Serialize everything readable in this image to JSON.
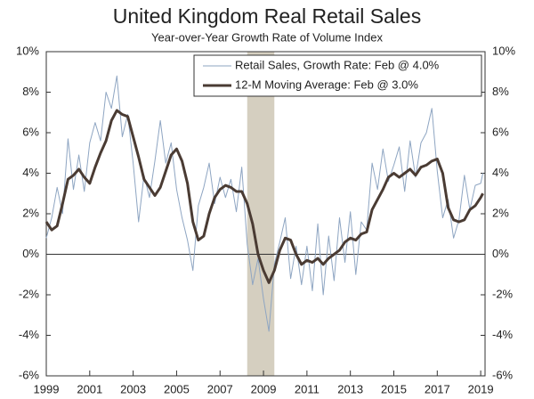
{
  "chart_data": {
    "type": "line",
    "title": "United Kingdom Real Retail Sales",
    "subtitle": "Year-over-Year Growth Rate of Volume Index",
    "x": [
      1999,
      1999.25,
      1999.5,
      1999.75,
      2000,
      2000.25,
      2000.5,
      2000.75,
      2001,
      2001.25,
      2001.5,
      2001.75,
      2002,
      2002.25,
      2002.5,
      2002.75,
      2003,
      2003.25,
      2003.5,
      2003.75,
      2004,
      2004.25,
      2004.5,
      2004.75,
      2005,
      2005.25,
      2005.5,
      2005.75,
      2006,
      2006.25,
      2006.5,
      2006.75,
      2007,
      2007.25,
      2007.5,
      2007.75,
      2008,
      2008.25,
      2008.5,
      2008.75,
      2009,
      2009.25,
      2009.5,
      2009.75,
      2010,
      2010.25,
      2010.5,
      2010.75,
      2011,
      2011.25,
      2011.5,
      2011.75,
      2012,
      2012.25,
      2012.5,
      2012.75,
      2013,
      2013.25,
      2013.5,
      2013.75,
      2014,
      2014.25,
      2014.5,
      2014.75,
      2015,
      2015.25,
      2015.5,
      2015.75,
      2016,
      2016.25,
      2016.5,
      2016.75,
      2017,
      2017.25,
      2017.5,
      2017.75,
      2018,
      2018.25,
      2018.5,
      2018.75,
      2019,
      2019.1
    ],
    "series": [
      {
        "name": "Retail Sales, Growth Rate: Feb @ 4.0%",
        "color": "#8ea5c2",
        "width": 1,
        "values": [
          0.8,
          1.8,
          3.3,
          2.0,
          5.7,
          3.2,
          4.9,
          3.1,
          5.5,
          6.5,
          5.6,
          8.0,
          7.2,
          8.8,
          5.8,
          6.9,
          4.5,
          1.6,
          3.9,
          2.8,
          4.6,
          6.6,
          4.5,
          5.5,
          3.2,
          1.8,
          0.7,
          -0.8,
          2.4,
          3.3,
          4.5,
          2.5,
          3.8,
          2.8,
          3.7,
          2.1,
          4.3,
          0.5,
          -1.5,
          -0.2,
          -2.2,
          -3.8,
          -0.5,
          0.6,
          1.8,
          -1.2,
          0.4,
          -1.5,
          0.4,
          -1.8,
          1.5,
          -2.0,
          0.9,
          -1.3,
          1.8,
          -0.4,
          2.1,
          -1.0,
          1.6,
          1.2,
          4.5,
          3.2,
          5.2,
          3.6,
          4.4,
          5.3,
          3.1,
          5.6,
          3.8,
          5.5,
          6.0,
          7.2,
          4.1,
          1.8,
          2.7,
          0.8,
          1.7,
          3.9,
          2.2,
          3.4,
          3.5,
          4.0
        ]
      },
      {
        "name": "12-M Moving Average: Feb @ 3.0%",
        "color": "#4a3b33",
        "width": 3,
        "values": [
          1.6,
          1.2,
          1.4,
          2.5,
          3.7,
          3.9,
          4.2,
          3.8,
          3.5,
          4.3,
          5.0,
          5.6,
          6.6,
          7.1,
          6.9,
          6.8,
          5.8,
          4.8,
          3.7,
          3.3,
          2.9,
          3.3,
          4.1,
          4.9,
          5.2,
          4.6,
          3.5,
          1.6,
          0.7,
          0.9,
          2.0,
          2.8,
          3.2,
          3.4,
          3.3,
          3.1,
          3.1,
          2.5,
          1.5,
          0.0,
          -0.8,
          -1.4,
          -0.8,
          0.2,
          0.8,
          0.7,
          0.0,
          -0.5,
          -0.3,
          -0.4,
          -0.2,
          -0.5,
          -0.2,
          0.0,
          0.2,
          0.6,
          0.8,
          0.7,
          1.0,
          1.1,
          2.2,
          2.7,
          3.2,
          3.8,
          4.0,
          3.8,
          4.0,
          4.2,
          3.9,
          4.3,
          4.4,
          4.6,
          4.7,
          4.0,
          2.3,
          1.7,
          1.6,
          1.7,
          2.2,
          2.4,
          2.8,
          3.0
        ]
      }
    ],
    "xlim": [
      1999,
      2019.2
    ],
    "xticks": [
      1999,
      2001,
      2003,
      2005,
      2007,
      2009,
      2011,
      2013,
      2015,
      2017,
      2019
    ],
    "ylim": [
      -6,
      10
    ],
    "yticks": [
      {
        "value": -6,
        "label": "-6%"
      },
      {
        "value": -4,
        "label": "-4%"
      },
      {
        "value": -2,
        "label": "-2%"
      },
      {
        "value": 0,
        "label": "0%"
      },
      {
        "value": 2,
        "label": "2%"
      },
      {
        "value": 4,
        "label": "4%"
      },
      {
        "value": 6,
        "label": "6%"
      },
      {
        "value": 8,
        "label": "8%"
      },
      {
        "value": 10,
        "label": "10%"
      }
    ],
    "y2lim": [
      -6,
      10
    ],
    "y2ticks": [
      {
        "value": -6,
        "label": "-6%"
      },
      {
        "value": -4,
        "label": "-4%"
      },
      {
        "value": -2,
        "label": "-2%"
      },
      {
        "value": 0,
        "label": "0%"
      },
      {
        "value": 2,
        "label": "2%"
      },
      {
        "value": 4,
        "label": "4%"
      },
      {
        "value": 6,
        "label": "6%"
      },
      {
        "value": 8,
        "label": "8%"
      },
      {
        "value": 10,
        "label": "10%"
      }
    ],
    "shaded_x": [
      2008.25,
      2009.5
    ],
    "shade_color": "#d5cfc0",
    "zero_line": true,
    "legend": "top-right"
  }
}
